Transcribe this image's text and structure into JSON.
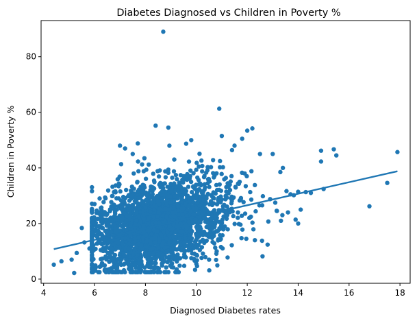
{
  "chart_data": {
    "type": "scatter",
    "title": "Diabetes Diagnosed vs Children in Poverty %",
    "xlabel": "Diagnosed Diabetes rates",
    "ylabel": "Children in Poverty %",
    "xlim": [
      3.9,
      18.4
    ],
    "ylim": [
      -1.5,
      93
    ],
    "xticks": [
      4,
      6,
      8,
      10,
      12,
      14,
      16,
      18
    ],
    "yticks": [
      0,
      20,
      40,
      60,
      80
    ],
    "grid": false,
    "legend": "none",
    "point_color": "#1f77b4",
    "trendline": {
      "x": [
        4.4,
        17.9
      ],
      "y": [
        10.8,
        38.8
      ]
    },
    "outliers": {
      "x": [
        4.4,
        4.7,
        5.1,
        5.2,
        5.3,
        5.5,
        6.6,
        7.7,
        8.7,
        10.9,
        11.0,
        12.0,
        12.2,
        14.9,
        14.9,
        15.0,
        15.4,
        15.5,
        16.8,
        17.5,
        17.9,
        13.0,
        13.3,
        12.5,
        11.8,
        11.5,
        9.6,
        9.8,
        8.9,
        8.4,
        14.3,
        13.7,
        13.9,
        14.0,
        14.5,
        13.1,
        12.8,
        12.6,
        10.5,
        10.8,
        10.0,
        9.5,
        7.0,
        7.2,
        7.5,
        6.2,
        6.0,
        5.8,
        5.6,
        5.9,
        6.4,
        6.3,
        6.8,
        7.4,
        10.1,
        11.7,
        11.9,
        12.3,
        13.4,
        13.6,
        14.1
      ],
      "y": [
        5.2,
        6.4,
        7.0,
        2.2,
        9.4,
        18.4,
        8.3,
        48.8,
        89.0,
        61.3,
        51.5,
        53.4,
        54.2,
        46.2,
        42.3,
        32.4,
        46.7,
        44.5,
        26.2,
        34.6,
        45.7,
        45.0,
        38.5,
        45.0,
        50.5,
        48.0,
        48.7,
        50.0,
        54.5,
        55.2,
        31.3,
        30.5,
        21.4,
        20.0,
        31.0,
        27.5,
        12.4,
        8.2,
        7.0,
        10.0,
        5.5,
        11.5,
        48.0,
        47.0,
        45.0,
        29.0,
        27.0,
        11.0,
        13.2,
        7.0,
        3.0,
        5.0,
        4.5,
        3.5,
        40.5,
        35.0,
        38.0,
        14.0,
        40.0,
        24.0,
        25.0
      ]
    },
    "cluster": {
      "count": 2700,
      "x_mean": 8.4,
      "x_sd": 1.5,
      "y_intercept": 2.5,
      "y_slope": 2.0,
      "y_noise_sd": 7.5,
      "x_range": [
        5.9,
        14.0
      ],
      "y_range": [
        2.5,
        48.0
      ]
    }
  }
}
